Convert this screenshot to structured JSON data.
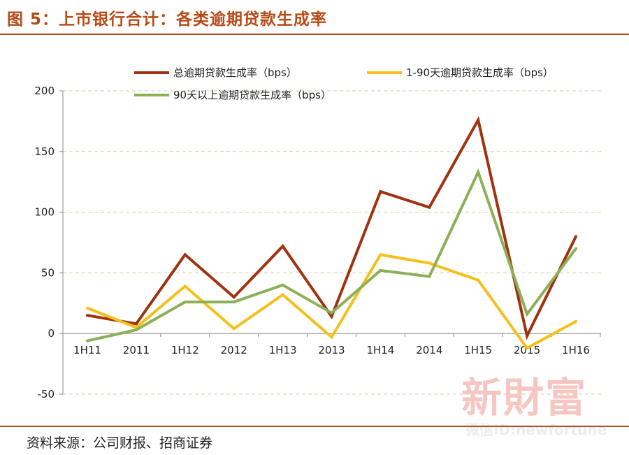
{
  "header": {
    "title": "图 5：上市银行合计：各类逾期贷款生成率"
  },
  "footer": {
    "source": "资料来源：公司财报、招商证券"
  },
  "watermark": {
    "main": "新財富",
    "sub": "微信ID:newfortune"
  },
  "chart_data": {
    "type": "line",
    "title": "上市银行合计：各类逾期贷款生成率",
    "xlabel": "",
    "ylabel": "",
    "ylim": [
      -50,
      200
    ],
    "yticks": [
      -50,
      0,
      50,
      100,
      150,
      200
    ],
    "grid": true,
    "legend_position": "top",
    "categories": [
      "1H11",
      "2011",
      "1H12",
      "2012",
      "1H13",
      "2013",
      "1H14",
      "2014",
      "1H15",
      "2015",
      "1H16"
    ],
    "series": [
      {
        "name": "总逾期贷款生成率（bps）",
        "color": "#a0320f",
        "values": [
          15,
          8,
          65,
          30,
          72,
          14,
          117,
          104,
          176,
          -2,
          80
        ]
      },
      {
        "name": "1-90天逾期贷款生成率（bps）",
        "color": "#f5c01b",
        "values": [
          21,
          5,
          39,
          4,
          32,
          -3,
          65,
          58,
          44,
          -12,
          10
        ]
      },
      {
        "name": "90天以上逾期贷款生成率（bps）",
        "color": "#8cb058",
        "values": [
          -6,
          3,
          26,
          26,
          40,
          17,
          52,
          47,
          133,
          16,
          70
        ]
      }
    ]
  }
}
